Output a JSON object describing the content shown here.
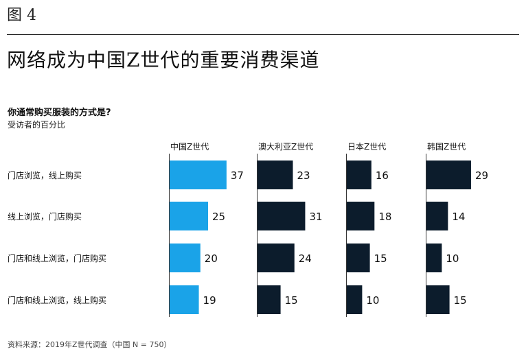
{
  "figure_label": "图 4",
  "title": "网络成为中国Z世代的重要消费渠道",
  "question": "你通常购买服装的方式是?",
  "subtitle": "受访者的百分比",
  "source": "资料来源：2019年Z世代调查（中国 N = 750）",
  "colors": {
    "china": "#1aa3e8",
    "others": "#0c1c2c",
    "axis": "#333333"
  },
  "chart_data": {
    "type": "bar",
    "orientation": "horizontal",
    "categories": [
      "门店浏览，线上购买",
      "线上浏览，门店购买",
      "门店和线上浏览，门店购买",
      "门店和线上浏览，线上购买"
    ],
    "series": [
      {
        "name": "中国Z世代",
        "values": [
          37,
          25,
          20,
          19
        ]
      },
      {
        "name": "澳大利亚Z世代",
        "values": [
          23,
          31,
          24,
          15
        ]
      },
      {
        "name": "日本Z世代",
        "values": [
          16,
          18,
          15,
          10
        ]
      },
      {
        "name": "韩国Z世代",
        "values": [
          29,
          14,
          10,
          15
        ]
      }
    ],
    "xlim": [
      0,
      40
    ],
    "data_labels": true,
    "grid": false
  }
}
